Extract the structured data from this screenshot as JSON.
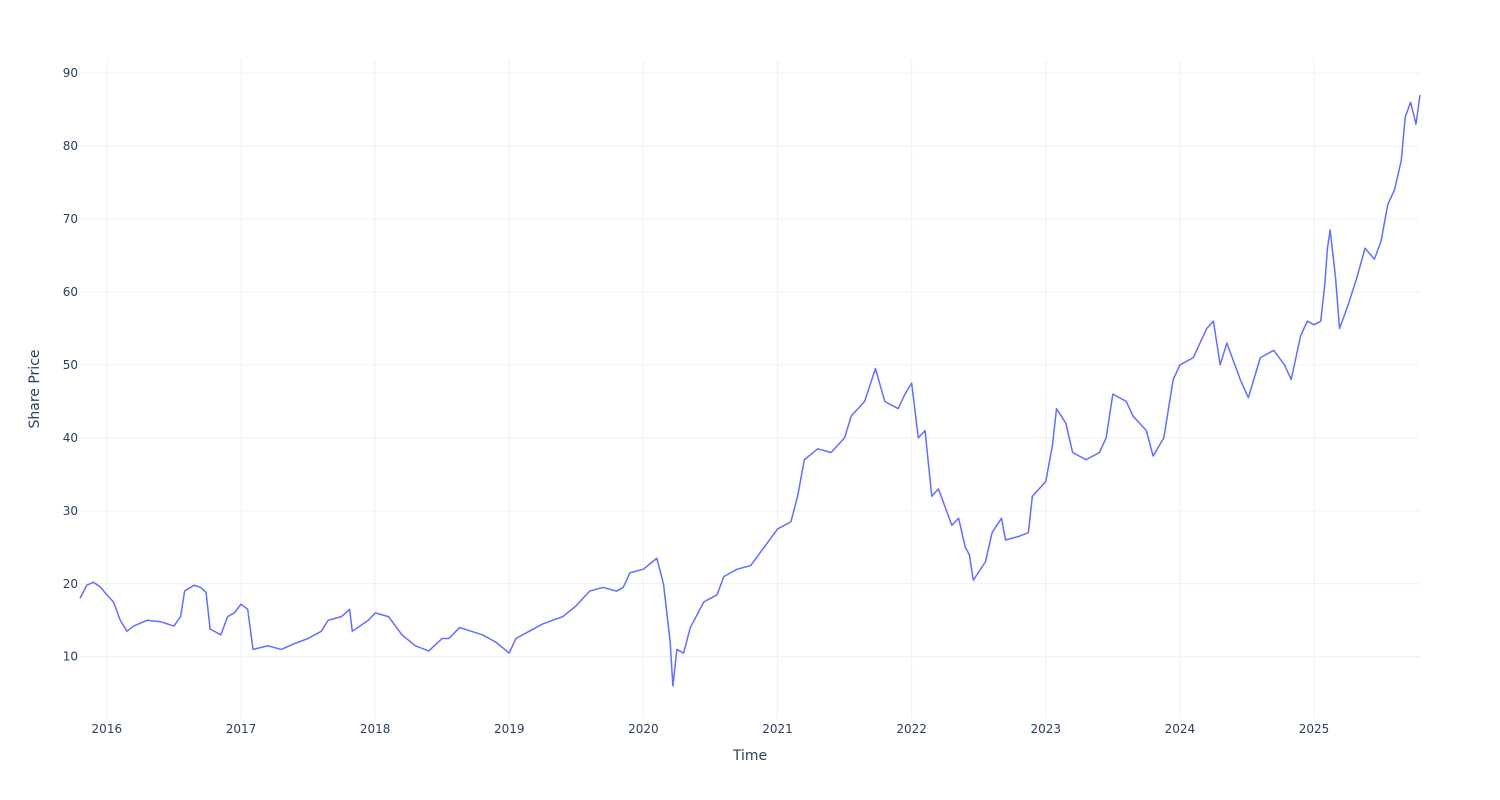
{
  "chart_data": {
    "type": "line",
    "x_label": "Time",
    "y_label": "Share Price",
    "xlim": [
      2015.8,
      2025.79
    ],
    "xticks": [
      2016,
      2017,
      2018,
      2019,
      2020,
      2021,
      2022,
      2023,
      2024,
      2025
    ],
    "ylim": [
      1.6,
      91.8
    ],
    "yticks": [
      10,
      20,
      30,
      40,
      50,
      60,
      70,
      80,
      90
    ],
    "grid": true,
    "series": [
      {
        "color": "#636efa",
        "x": [
          2015.8,
          2015.85,
          2015.9,
          2015.95,
          2016.0,
          2016.05,
          2016.1,
          2016.15,
          2016.2,
          2016.3,
          2016.4,
          2016.5,
          2016.55,
          2016.58,
          2016.65,
          2016.7,
          2016.74,
          2016.77,
          2016.85,
          2016.9,
          2016.95,
          2017.0,
          2017.05,
          2017.09,
          2017.2,
          2017.3,
          2017.4,
          2017.5,
          2017.6,
          2017.65,
          2017.75,
          2017.81,
          2017.83,
          2017.95,
          2018.0,
          2018.1,
          2018.2,
          2018.3,
          2018.4,
          2018.5,
          2018.55,
          2018.63,
          2018.8,
          2018.9,
          2019.0,
          2019.05,
          2019.15,
          2019.25,
          2019.4,
          2019.5,
          2019.6,
          2019.7,
          2019.8,
          2019.85,
          2019.9,
          2020.0,
          2020.1,
          2020.15,
          2020.2,
          2020.22,
          2020.25,
          2020.3,
          2020.35,
          2020.45,
          2020.55,
          2020.6,
          2020.7,
          2020.8,
          2020.9,
          2021.0,
          2021.1,
          2021.15,
          2021.2,
          2021.3,
          2021.4,
          2021.5,
          2021.55,
          2021.65,
          2021.73,
          2021.8,
          2021.9,
          2021.95,
          2022.0,
          2022.05,
          2022.1,
          2022.15,
          2022.2,
          2022.3,
          2022.35,
          2022.4,
          2022.43,
          2022.46,
          2022.55,
          2022.6,
          2022.67,
          2022.7,
          2022.8,
          2022.87,
          2022.9,
          2023.0,
          2023.05,
          2023.08,
          2023.15,
          2023.2,
          2023.3,
          2023.4,
          2023.45,
          2023.5,
          2023.6,
          2023.65,
          2023.75,
          2023.8,
          2023.88,
          2023.95,
          2024.0,
          2024.1,
          2024.2,
          2024.25,
          2024.3,
          2024.35,
          2024.45,
          2024.51,
          2024.6,
          2024.7,
          2024.78,
          2024.83,
          2024.9,
          2024.95,
          2025.0,
          2025.05,
          2025.08,
          2025.1,
          2025.12,
          2025.16,
          2025.19,
          2025.25,
          2025.32,
          2025.38,
          2025.45,
          2025.5,
          2025.55,
          2025.6,
          2025.65,
          2025.68,
          2025.72,
          2025.76,
          2025.79
        ],
        "values": [
          18,
          19.8,
          20.2,
          19.6,
          18.5,
          17.5,
          15,
          13.5,
          14.2,
          15,
          14.8,
          14.2,
          15.5,
          19,
          19.8,
          19.5,
          18.8,
          13.8,
          13,
          15.5,
          16,
          17.2,
          16.5,
          11,
          11.5,
          11,
          11.8,
          12.5,
          13.5,
          15,
          15.5,
          16.5,
          13.5,
          15,
          16,
          15.5,
          13,
          11.5,
          10.8,
          12.5,
          12.5,
          14,
          13,
          12,
          10.5,
          12.5,
          13.5,
          14.5,
          15.5,
          17,
          19,
          19.5,
          19,
          19.5,
          21.5,
          22,
          23.5,
          20,
          12,
          6,
          11,
          10.5,
          14,
          17.5,
          18.5,
          21,
          22,
          22.5,
          25,
          27.5,
          28.5,
          32,
          37,
          38.5,
          38,
          40,
          43,
          45,
          49.5,
          45,
          44,
          46,
          47.5,
          40,
          41,
          32,
          33,
          28,
          29,
          25,
          24,
          20.5,
          23,
          27,
          29,
          26,
          26.5,
          27,
          32,
          34,
          39,
          44,
          42,
          38,
          37,
          38,
          40,
          46,
          45,
          43,
          41,
          37.5,
          40,
          48,
          50,
          51,
          55,
          56,
          50,
          53,
          48,
          45.5,
          51,
          52,
          50,
          48,
          54,
          56,
          55.5,
          56,
          61,
          66,
          68.5,
          62,
          55,
          58,
          62,
          66,
          64.5,
          67,
          72,
          74,
          78,
          84,
          86,
          83,
          87
        ]
      }
    ]
  }
}
